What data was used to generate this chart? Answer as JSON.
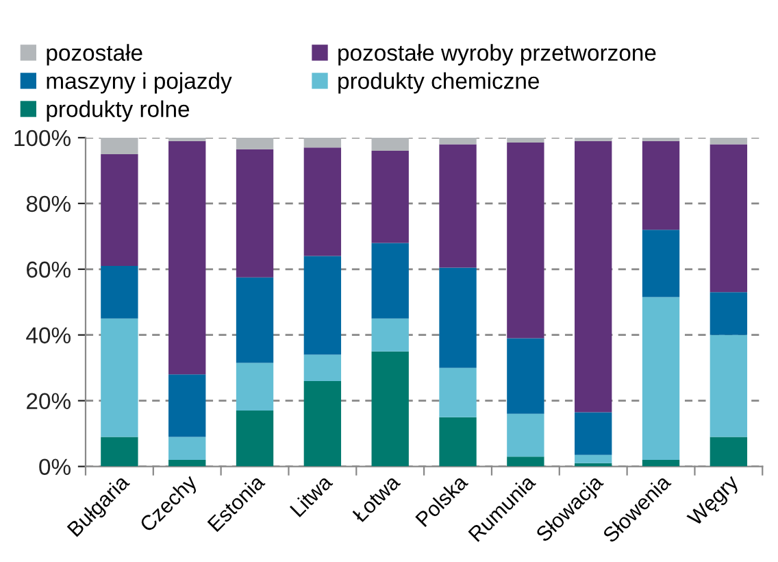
{
  "chart_data": {
    "type": "bar",
    "stacked": true,
    "categories": [
      "Bułgaria",
      "Czechy",
      "Estonia",
      "Litwa",
      "Łotwa",
      "Polska",
      "Rumunia",
      "Słowacja",
      "Słowenia",
      "Węgry"
    ],
    "series": [
      {
        "name": "produkty rolne",
        "color": "#007a6e",
        "values": [
          9,
          2,
          17,
          26,
          35,
          15,
          3,
          1,
          2,
          9
        ]
      },
      {
        "name": "produkty chemiczne",
        "color": "#63bed4",
        "values": [
          36,
          7,
          14.5,
          8,
          10,
          15,
          13,
          2.5,
          49.5,
          31
        ]
      },
      {
        "name": "maszyny i pojazdy",
        "color": "#0069a1",
        "values": [
          16,
          19,
          26,
          30,
          23,
          30.5,
          23,
          13,
          20.5,
          13
        ]
      },
      {
        "name": "pozostałe wyroby przetworzone",
        "color": "#5f327a",
        "values": [
          34,
          71,
          39,
          33,
          28,
          37.5,
          59.5,
          82.5,
          27,
          45
        ]
      },
      {
        "name": "pozostałe",
        "color": "#b3b7ba",
        "values": [
          5,
          1,
          3.5,
          3,
          4,
          2,
          1.5,
          1,
          1,
          2
        ]
      }
    ],
    "ylim": [
      0,
      100
    ],
    "yticks": [
      {
        "value": 0,
        "label": "0%"
      },
      {
        "value": 20,
        "label": "20%"
      },
      {
        "value": 40,
        "label": "40%"
      },
      {
        "value": 60,
        "label": "60%"
      },
      {
        "value": 80,
        "label": "80%"
      },
      {
        "value": 100,
        "label": "100%"
      }
    ],
    "grid": "y",
    "legend": "top"
  }
}
